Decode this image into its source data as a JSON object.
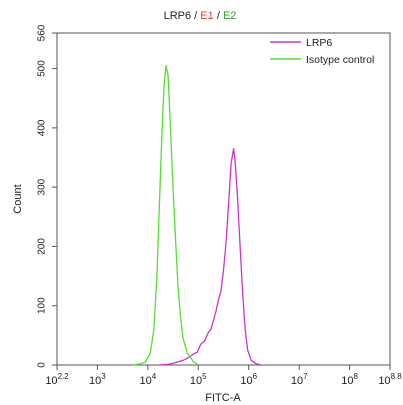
{
  "chart_data": {
    "type": "line",
    "title_parts": [
      {
        "text": "LRP6",
        "color": "#222222"
      },
      {
        "text": " / ",
        "color": "#222222"
      },
      {
        "text": "E1",
        "color": "#e23b3b"
      },
      {
        "text": " / ",
        "color": "#222222"
      },
      {
        "text": "E2",
        "color": "#2e9e2e"
      }
    ],
    "xlabel": "FITC-A",
    "ylabel": "Count",
    "x_scale": "log",
    "xlim_log10": [
      2.2,
      8.8
    ],
    "ylim": [
      0,
      560
    ],
    "y_ticks": [
      0,
      100,
      200,
      300,
      400,
      500,
      560
    ],
    "x_ticks": [
      {
        "log10": 2.2,
        "base": "10",
        "exp": "2.2"
      },
      {
        "log10": 3,
        "base": "10",
        "exp": "3"
      },
      {
        "log10": 4,
        "base": "10",
        "exp": "4"
      },
      {
        "log10": 5,
        "base": "10",
        "exp": "5"
      },
      {
        "log10": 6,
        "base": "10",
        "exp": "6"
      },
      {
        "log10": 7,
        "base": "10",
        "exp": "7"
      },
      {
        "log10": 8,
        "base": "10",
        "exp": "8"
      },
      {
        "log10": 8.8,
        "base": "10",
        "exp": "8.8"
      }
    ],
    "legend_position": "top-right",
    "series": [
      {
        "name": "LRP6",
        "color": "#cc33cc",
        "points_log10x_y": [
          [
            4.2,
            0
          ],
          [
            4.4,
            1
          ],
          [
            4.55,
            4
          ],
          [
            4.7,
            8
          ],
          [
            4.8,
            12
          ],
          [
            4.9,
            18
          ],
          [
            4.98,
            22
          ],
          [
            5.05,
            35
          ],
          [
            5.12,
            40
          ],
          [
            5.2,
            55
          ],
          [
            5.25,
            60
          ],
          [
            5.3,
            75
          ],
          [
            5.35,
            90
          ],
          [
            5.4,
            110
          ],
          [
            5.45,
            125
          ],
          [
            5.5,
            160
          ],
          [
            5.55,
            205
          ],
          [
            5.6,
            270
          ],
          [
            5.65,
            340
          ],
          [
            5.7,
            365
          ],
          [
            5.73,
            345
          ],
          [
            5.78,
            280
          ],
          [
            5.83,
            200
          ],
          [
            5.88,
            120
          ],
          [
            5.93,
            60
          ],
          [
            5.98,
            25
          ],
          [
            6.05,
            8
          ],
          [
            6.15,
            2
          ],
          [
            6.25,
            0
          ]
        ]
      },
      {
        "name": "Isotype control",
        "color": "#55dd33",
        "points_log10x_y": [
          [
            3.7,
            0
          ],
          [
            3.85,
            2
          ],
          [
            3.95,
            5
          ],
          [
            4.05,
            20
          ],
          [
            4.12,
            60
          ],
          [
            4.18,
            150
          ],
          [
            4.23,
            270
          ],
          [
            4.28,
            390
          ],
          [
            4.32,
            470
          ],
          [
            4.36,
            505
          ],
          [
            4.4,
            490
          ],
          [
            4.45,
            400
          ],
          [
            4.5,
            300
          ],
          [
            4.55,
            210
          ],
          [
            4.6,
            130
          ],
          [
            4.65,
            80
          ],
          [
            4.7,
            45
          ],
          [
            4.78,
            20
          ],
          [
            4.9,
            6
          ],
          [
            5.0,
            0
          ]
        ]
      }
    ]
  }
}
